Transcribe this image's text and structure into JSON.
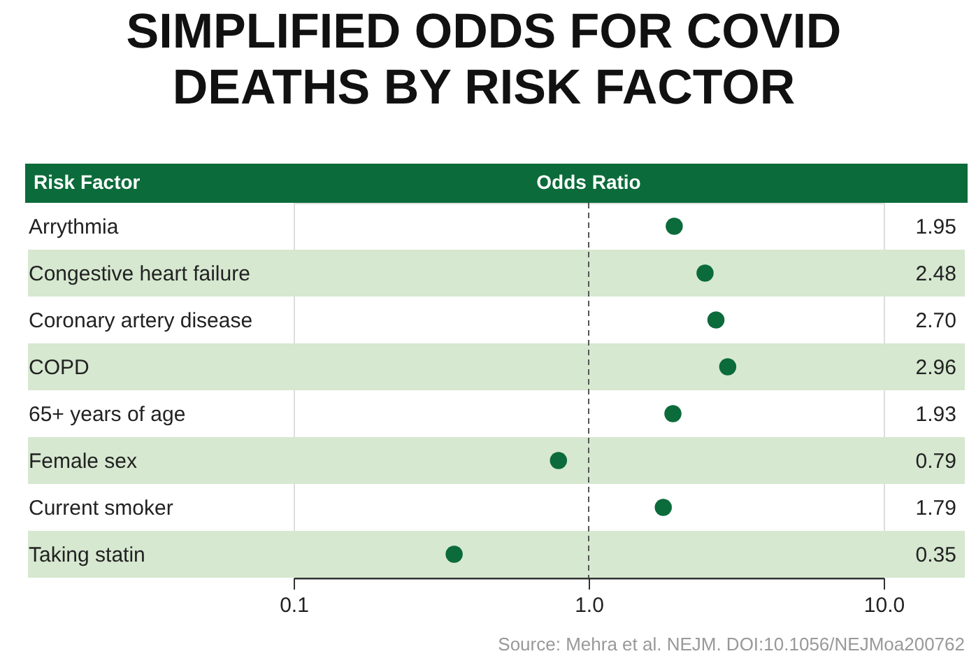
{
  "chart_data": {
    "type": "scatter",
    "title": "SIMPLIFIED ODDS FOR COVID DEATHS BY RISK FACTOR",
    "xlabel": "Odds Ratio",
    "ylabel": "Risk Factor",
    "categories": [
      "Arrythmia",
      "Congestive heart failure",
      "Coronary artery disease",
      "COPD",
      "65+ years of age",
      "Female sex",
      "Current smoker",
      "Taking statin"
    ],
    "orientation": "horizontal",
    "series": [
      {
        "color": "#0b6b3a",
        "values": [
          1.95,
          2.48,
          2.7,
          2.96,
          1.93,
          0.79,
          1.79,
          0.35
        ]
      }
    ],
    "value_labels": [
      "1.95",
      "2.48",
      "2.70",
      "2.96",
      "1.93",
      "0.79",
      "1.79",
      "0.35"
    ],
    "xlim": [
      0.1,
      10
    ],
    "xticks": [
      0.1,
      {
        "value": 1,
        "label": "1.0"
      },
      {
        "value": 10,
        "label": "10.0"
      }
    ],
    "log": "x",
    "grid": false,
    "marker": "circle",
    "ref_lines": [
      {
        "axis": "x",
        "value": 1,
        "color": "#555555",
        "line_style": "dashed"
      }
    ],
    "annotations": [
      "Source: Mehra et al. NEJM. DOI:10.1056/NEJMoa200762"
    ]
  }
}
